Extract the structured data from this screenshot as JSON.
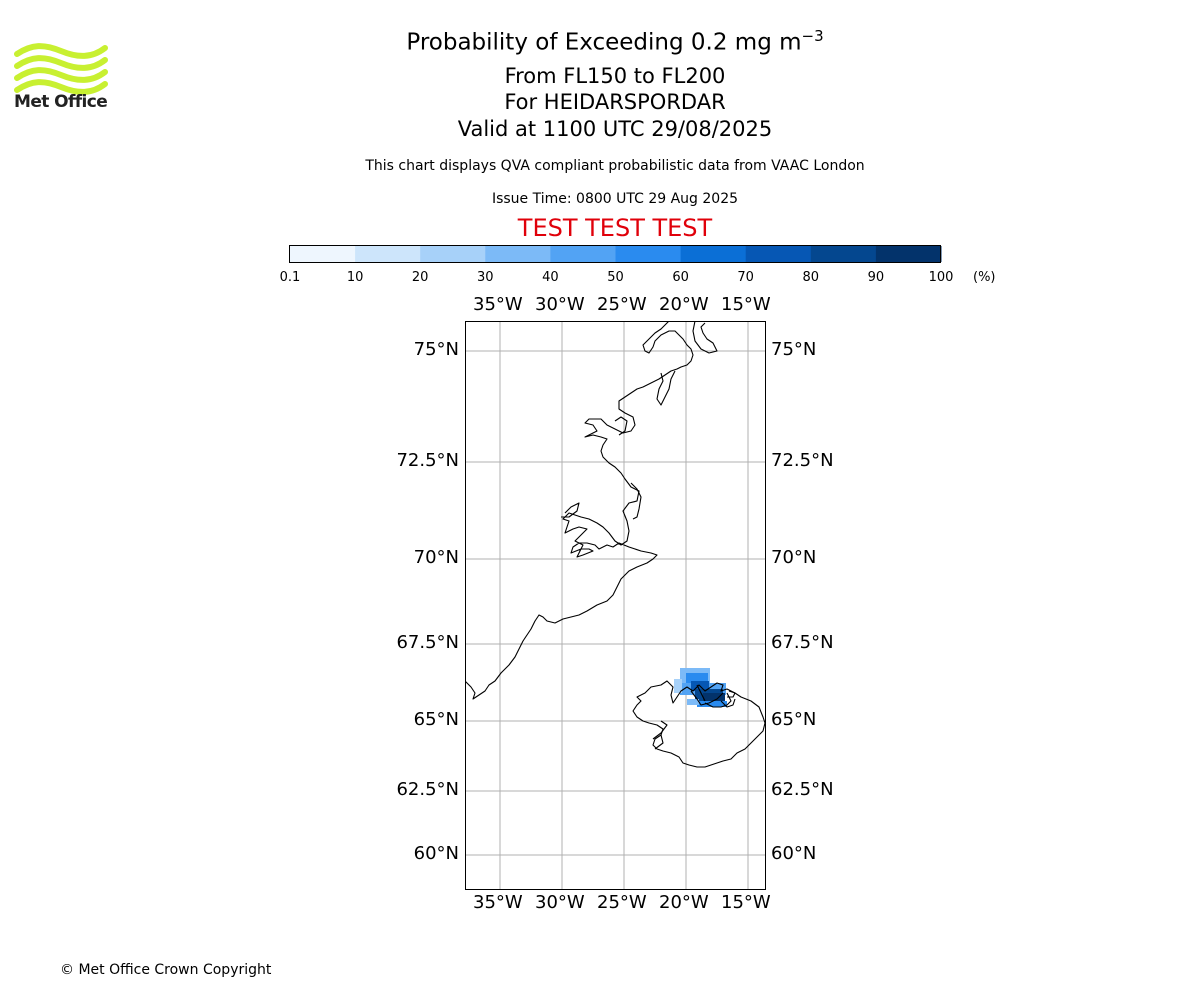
{
  "header": {
    "title_main": "Probability of Exceeding 0.2 mg m",
    "title_sup": "−3",
    "line2": "From FL150 to FL200",
    "line3": "For HEIDARSPORDAR",
    "line4": "Valid at 1100 UTC 29/08/2025",
    "subtitle": "This chart displays QVA compliant probabilistic data from VAAC London",
    "issue_time": "Issue Time: 0800 UTC 29 Aug 2025",
    "test_banner": "TEST TEST TEST",
    "test_color": "#e0000a"
  },
  "logo": {
    "icon": "met-office-waves-icon",
    "text": "Met Office",
    "color": "#c8f031"
  },
  "colorbar": {
    "ticks": [
      "0.1",
      "10",
      "20",
      "30",
      "40",
      "50",
      "60",
      "70",
      "80",
      "90",
      "100"
    ],
    "unit": "(%)",
    "colors": [
      "#eef6fe",
      "#cde5fb",
      "#a7d1f9",
      "#7cbaf7",
      "#52a3f4",
      "#2a8bef",
      "#0b6fd6",
      "#0657b4",
      "#04478f",
      "#03336b"
    ]
  },
  "map": {
    "lon_labels": [
      "35°W",
      "30°W",
      "25°W",
      "20°W",
      "15°W"
    ],
    "lat_labels": [
      "75°N",
      "72.5°N",
      "70°N",
      "67.5°N",
      "65°N",
      "62.5°N",
      "60°N"
    ],
    "gridline_color": "#b0b0b0"
  },
  "footer": {
    "copyright": "© Met Office Crown Copyright"
  }
}
